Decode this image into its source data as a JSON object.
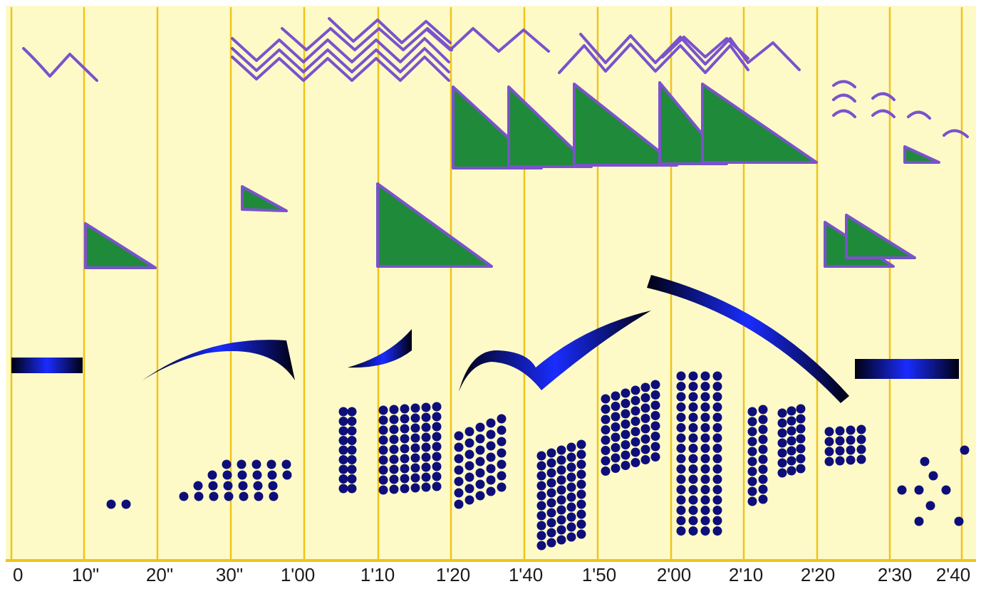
{
  "time_axis": {
    "labels": [
      "0",
      "10\"",
      "20\"",
      "30\"",
      "1'00",
      "1'10",
      "1'20",
      "1'40",
      "1'50",
      "2'00",
      "2'10",
      "2'20",
      "2'30",
      "2'40"
    ]
  },
  "colors": {
    "background": "#fdfac8",
    "gridline": "#f0c419",
    "wave": "#7a52cc",
    "wedge_fill": "#1f8a3a",
    "wedge_outline": "#7a52cc",
    "ribbon_dark": "#000010",
    "ribbon_bright": "#1a2cff",
    "dot": "#0e0e7a",
    "label": "#1a1a1a"
  },
  "layers": [
    "wavy-lines",
    "green-wedges",
    "blue-ribbons",
    "dot-clusters"
  ]
}
